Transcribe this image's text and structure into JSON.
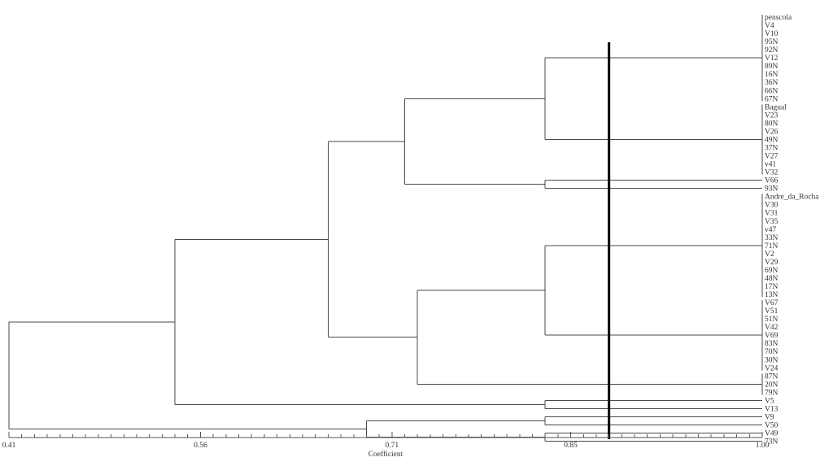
{
  "chart_data": {
    "type": "dendrogram",
    "xlabel": "Coefficient",
    "xlim": [
      0.41,
      1.0
    ],
    "ticks": [
      "0.41",
      "0.56",
      "0.71",
      "0.85",
      "1.00"
    ],
    "tick_values": [
      0.41,
      0.56,
      0.71,
      0.85,
      1.0
    ],
    "cut_coefficient": 0.88,
    "leaves": [
      "penscola",
      "V4",
      "V10",
      "95N",
      "92N",
      "V12",
      "89N",
      "16N",
      "36N",
      "66N",
      "67N",
      "Bagual",
      "V23",
      "80N",
      "V26",
      "49N",
      "37N",
      "V27",
      "v41",
      "V32",
      "V66",
      "93N",
      "Andre_da_Rocha",
      "V30",
      "V31",
      "V35",
      "v47",
      "33N",
      "71N",
      "V2",
      "V29",
      "69N",
      "48N",
      "17N",
      "13N",
      "V67",
      "V51",
      "51N",
      "V42",
      "V69",
      "83N",
      "70N",
      "30N",
      "V24",
      "87N",
      "20N",
      "79N",
      "V5",
      "V13",
      "V9",
      "V50",
      "V49",
      "73N"
    ],
    "clusters": [
      {
        "name": "g1",
        "members": [
          0,
          1,
          2,
          3,
          4,
          5,
          6,
          7,
          8,
          9,
          10
        ],
        "coefficient": 1.0
      },
      {
        "name": "g2",
        "members": [
          11,
          12,
          13,
          14,
          15,
          16,
          17,
          18,
          19
        ],
        "coefficient": 1.0
      },
      {
        "name": "g3",
        "members": [
          20
        ],
        "coefficient": 1.0
      },
      {
        "name": "g4",
        "members": [
          21
        ],
        "coefficient": 1.0
      },
      {
        "name": "g5",
        "members": [
          22,
          23,
          24,
          25,
          26,
          27,
          28,
          29,
          30,
          31,
          32,
          33,
          34
        ],
        "coefficient": 1.0
      },
      {
        "name": "g6",
        "members": [
          35,
          36,
          37,
          38,
          39,
          40,
          41,
          42,
          43
        ],
        "coefficient": 1.0
      },
      {
        "name": "g7",
        "members": [
          44,
          45,
          46
        ],
        "coefficient": 1.0
      },
      {
        "name": "g8",
        "members": [
          47
        ],
        "coefficient": 1.0
      },
      {
        "name": "g9",
        "members": [
          48
        ],
        "coefficient": 1.0
      },
      {
        "name": "g10",
        "members": [
          49
        ],
        "coefficient": 1.0
      },
      {
        "name": "g11",
        "members": [
          50
        ],
        "coefficient": 1.0
      },
      {
        "name": "g12",
        "members": [
          51
        ],
        "coefficient": 1.0
      },
      {
        "name": "g13",
        "members": [
          52
        ],
        "coefficient": 1.0
      }
    ],
    "merges": [
      {
        "left": "g1",
        "right": "g2",
        "name": "m1",
        "coefficient": 0.83
      },
      {
        "left": "g3",
        "right": "g4",
        "name": "m2",
        "coefficient": 0.83
      },
      {
        "left": "m1",
        "right": "m2",
        "name": "m3",
        "coefficient": 0.72
      },
      {
        "left": "g5",
        "right": "g6",
        "name": "m4",
        "coefficient": 0.83
      },
      {
        "left": "m4",
        "right": "g7",
        "name": "m5",
        "coefficient": 0.73
      },
      {
        "left": "m3",
        "right": "m5",
        "name": "m6",
        "coefficient": 0.66
      },
      {
        "left": "g8",
        "right": "g9",
        "name": "m7",
        "coefficient": 0.83
      },
      {
        "left": "m6",
        "right": "m7",
        "name": "m8",
        "coefficient": 0.54
      },
      {
        "left": "g10",
        "right": "g11",
        "name": "m9",
        "coefficient": 0.83
      },
      {
        "left": "g12",
        "right": "g13",
        "name": "m10",
        "coefficient": 0.83
      },
      {
        "left": "m9",
        "right": "m10",
        "name": "m11",
        "coefficient": 0.69
      },
      {
        "left": "m8",
        "right": "m11",
        "name": "m12",
        "coefficient": 0.41
      }
    ]
  }
}
